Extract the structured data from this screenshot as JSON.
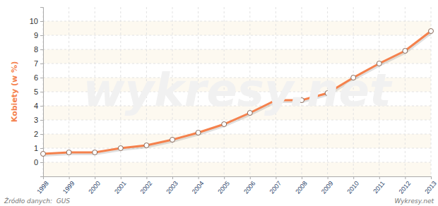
{
  "chart_data": {
    "type": "line",
    "y_label": "Kobiety (w %)",
    "source": "Źródło danych:  GUS",
    "credit": "Wykresy.net",
    "watermark": "wykresy.net",
    "x": [
      1998,
      1999,
      2000,
      2001,
      2002,
      2003,
      2004,
      2005,
      2006,
      2007,
      2008,
      2009,
      2010,
      2011,
      2012,
      2013
    ],
    "values": [
      0.6,
      0.7,
      0.7,
      1.0,
      1.2,
      1.6,
      2.1,
      2.7,
      3.5,
      4.4,
      4.4,
      4.9,
      6.0,
      7.0,
      7.9,
      9.3
    ],
    "color": "#f5814c",
    "marker": "circle",
    "line_style": "solid",
    "xlim": [
      1998,
      2013
    ],
    "xticks": [
      1998,
      1999,
      2000,
      2001,
      2002,
      2003,
      2004,
      2005,
      2006,
      2007,
      2008,
      2009,
      2010,
      2011,
      2012,
      2013
    ],
    "ylim": [
      -1,
      11
    ],
    "yticks": [
      0,
      1,
      2,
      3,
      4,
      5,
      6,
      7,
      8,
      9,
      10
    ],
    "grid": true
  }
}
